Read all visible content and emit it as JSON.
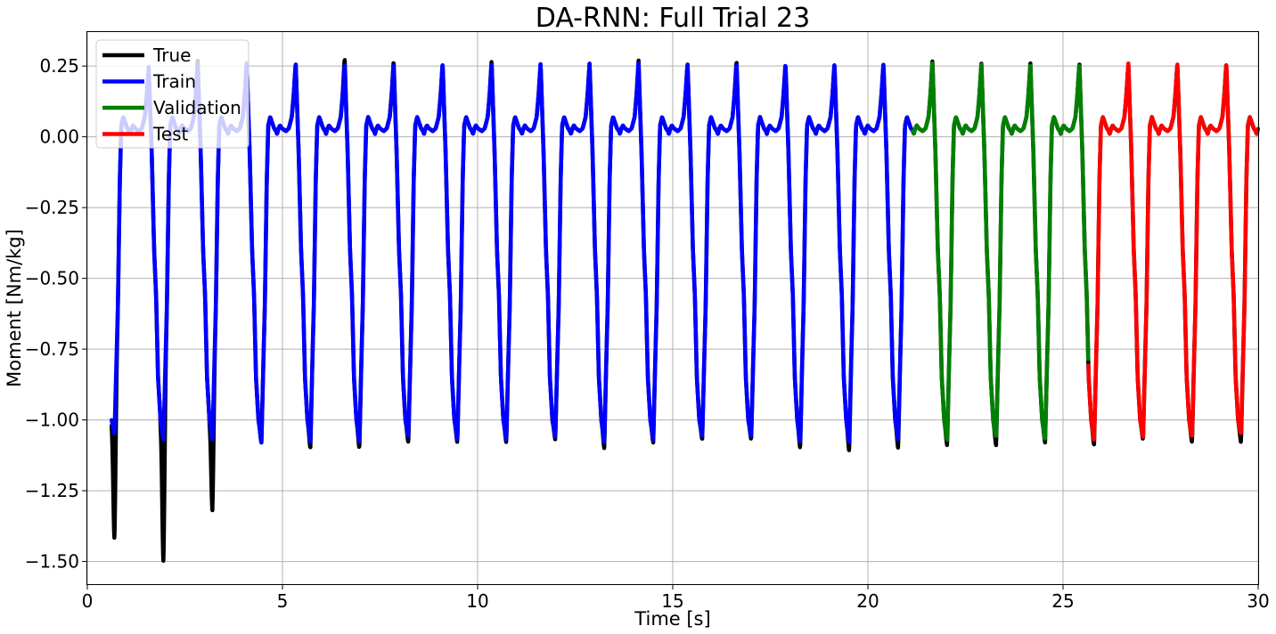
{
  "chart_data": {
    "type": "line",
    "title": "DA-RNN: Full Trial 23",
    "xlabel": "Time [s]",
    "ylabel": "Moment [Nm/kg]",
    "xlim": [
      0,
      30
    ],
    "ylim": [
      -1.58,
      0.37
    ],
    "xticks": [
      0,
      5,
      10,
      15,
      20,
      25,
      30
    ],
    "xtick_labels": [
      "0",
      "5",
      "10",
      "15",
      "20",
      "25",
      "30"
    ],
    "yticks": [
      0.25,
      0.0,
      -0.25,
      -0.5,
      -0.75,
      -1.0,
      -1.25,
      -1.5
    ],
    "ytick_labels": [
      "0.25",
      "0.00",
      "−0.25",
      "−0.50",
      "−0.75",
      "−1.00",
      "−1.25",
      "−1.50"
    ],
    "grid": true,
    "legend_position": "top-left",
    "series": [
      {
        "name": "True",
        "color": "#000000",
        "x_start": 0.62,
        "x_end": 30.0
      },
      {
        "name": "Train",
        "color": "#0000ff",
        "x_start": 0.62,
        "x_end": 21.15
      },
      {
        "name": "Validation",
        "color": "#008000",
        "x_start": 21.15,
        "x_end": 25.65
      },
      {
        "name": "Test",
        "color": "#ff0000",
        "x_start": 25.65,
        "x_end": 30.0
      }
    ],
    "gait_cycle": {
      "period_s": 1.255,
      "first_cycle_start_s": 0.62,
      "waveform_phase": [
        0.0,
        0.06,
        0.13,
        0.17,
        0.2,
        0.24,
        0.28,
        0.32,
        0.36,
        0.38,
        0.41,
        0.44,
        0.48,
        0.56,
        0.62,
        0.68,
        0.72,
        0.76,
        0.82,
        0.87,
        0.91,
        0.95,
        1.0
      ],
      "waveform_moment": [
        -1.0,
        -1.04,
        -0.6,
        -0.15,
        0.04,
        0.07,
        0.05,
        0.03,
        0.02,
        0.01,
        0.03,
        0.04,
        0.03,
        0.02,
        0.03,
        0.07,
        0.15,
        0.25,
        -0.05,
        -0.4,
        -0.56,
        -0.85,
        -1.0
      ],
      "trough_minima": {
        "true": [
          -1.42,
          -1.5,
          -1.32,
          -1.08,
          -1.1,
          -1.1,
          -1.08,
          -1.08,
          -1.08,
          -1.07,
          -1.1,
          -1.08,
          -1.07,
          -1.07,
          -1.1,
          -1.11,
          -1.1,
          -1.09,
          -1.09,
          -1.08,
          -1.09,
          -1.07,
          -1.08,
          -1.08,
          -1.09,
          -1.09,
          -1.08
        ],
        "predicted": [
          -1.05,
          -1.07,
          -1.07,
          -1.08,
          -1.08,
          -1.08,
          -1.06,
          -1.07,
          -1.07,
          -1.06,
          -1.08,
          -1.07,
          -1.06,
          -1.06,
          -1.08,
          -1.08,
          -1.07,
          -1.07,
          -1.06,
          -1.07,
          -1.07,
          -1.06,
          -1.06,
          -1.05,
          -1.06,
          -1.05,
          -1.05
        ]
      },
      "peak_maxima": {
        "true": [
          0.22,
          0.27,
          0.26,
          0.26,
          0.28,
          0.27,
          0.26,
          0.27,
          0.26,
          0.26,
          0.27,
          0.26,
          0.27,
          0.26,
          0.26,
          0.26,
          0.27,
          0.26,
          0.26,
          0.26,
          0.26,
          0.26,
          0.26,
          0.26,
          0.26,
          0.26,
          0.27
        ],
        "predicted": [
          0.25,
          0.25,
          0.26,
          0.26,
          0.26,
          0.26,
          0.26,
          0.26,
          0.26,
          0.26,
          0.26,
          0.26,
          0.26,
          0.26,
          0.26,
          0.26,
          0.26,
          0.26,
          0.26,
          0.26,
          0.26,
          0.26,
          0.26,
          0.26,
          0.26,
          0.26,
          0.26
        ]
      }
    }
  }
}
